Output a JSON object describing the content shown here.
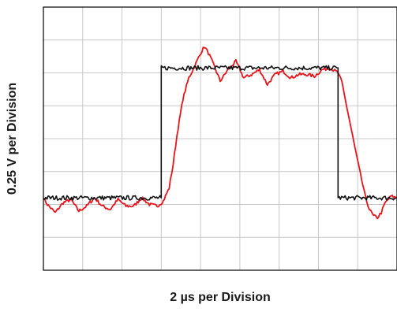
{
  "chart_data": {
    "type": "line",
    "xlabel": "2 µs per Division",
    "ylabel": "0.25 V per Division",
    "xlim": [
      0,
      9
    ],
    "ylim": [
      0,
      8
    ],
    "grid": true,
    "series": [
      {
        "color": "#111111",
        "x": [
          0,
          3.0,
          3.0,
          7.5,
          7.5,
          9.0
        ],
        "y": [
          2.2,
          2.2,
          6.15,
          6.15,
          2.2,
          2.2
        ]
      },
      {
        "color": "#e8141c",
        "x": [
          0.0,
          0.1,
          0.3,
          0.5,
          0.7,
          0.9,
          1.1,
          1.3,
          1.5,
          1.7,
          1.9,
          2.1,
          2.3,
          2.5,
          2.7,
          2.9,
          3.05,
          3.2,
          3.3,
          3.4,
          3.55,
          3.7,
          3.85,
          4.0,
          4.1,
          4.2,
          4.35,
          4.5,
          4.7,
          4.9,
          5.1,
          5.3,
          5.5,
          5.7,
          5.9,
          6.1,
          6.3,
          6.5,
          6.7,
          6.9,
          7.1,
          7.3,
          7.5,
          7.6,
          7.7,
          7.8,
          7.9,
          8.0,
          8.1,
          8.2,
          8.3,
          8.4,
          8.5,
          8.6,
          8.7,
          8.85,
          9.0
        ],
        "y": [
          2.2,
          2.0,
          1.75,
          2.05,
          2.15,
          1.8,
          1.95,
          2.2,
          1.95,
          1.85,
          2.15,
          1.95,
          1.95,
          2.2,
          2.0,
          1.95,
          2.1,
          2.5,
          3.2,
          4.1,
          5.2,
          5.85,
          6.2,
          6.6,
          6.8,
          6.6,
          6.2,
          5.75,
          6.1,
          6.35,
          5.85,
          5.95,
          6.1,
          5.65,
          5.95,
          6.05,
          5.85,
          5.95,
          5.95,
          5.9,
          6.1,
          6.15,
          6.0,
          5.7,
          5.1,
          4.5,
          3.9,
          3.3,
          2.75,
          2.2,
          1.85,
          1.65,
          1.6,
          1.75,
          2.05,
          2.25,
          2.2
        ]
      }
    ]
  }
}
